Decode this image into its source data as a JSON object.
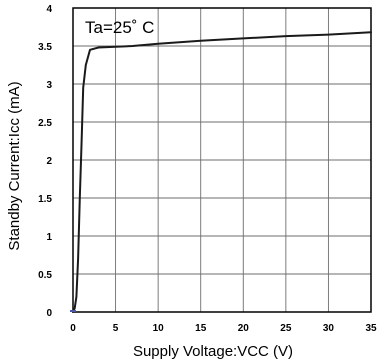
{
  "chart_data": {
    "type": "line",
    "xlabel": "Supply Voltage:VCC (V)",
    "ylabel": "Standby Current:Icc (mA)",
    "annotation": "Ta=25˚ C",
    "xlim": [
      0,
      35
    ],
    "ylim": [
      0,
      4
    ],
    "x_ticks": [
      0,
      5,
      10,
      15,
      20,
      25,
      30,
      35
    ],
    "y_ticks": [
      0,
      0.5,
      1,
      1.5,
      2,
      2.5,
      3,
      3.5,
      4
    ],
    "x_tick_labels": [
      "0",
      "5",
      "10",
      "15",
      "20",
      "25",
      "30",
      "35"
    ],
    "y_tick_labels": [
      "0",
      "0.5",
      "1",
      "1.5",
      "2",
      "2.5",
      "3",
      "3.5",
      "4"
    ],
    "grid": true,
    "line_color": "#1a1a1a",
    "start_marker_color": "#4a5aa8",
    "series": [
      {
        "x": [
          0,
          0.2,
          0.4,
          0.6,
          0.8,
          1.0,
          1.2,
          1.5,
          2.0,
          3.0,
          5.0,
          7.0,
          10.0,
          15.0,
          20.0,
          25.0,
          30.0,
          35.0
        ],
        "y": [
          0,
          0.05,
          0.2,
          0.7,
          1.5,
          2.2,
          2.95,
          3.25,
          3.45,
          3.48,
          3.49,
          3.5,
          3.53,
          3.57,
          3.6,
          3.63,
          3.65,
          3.68
        ]
      }
    ]
  }
}
